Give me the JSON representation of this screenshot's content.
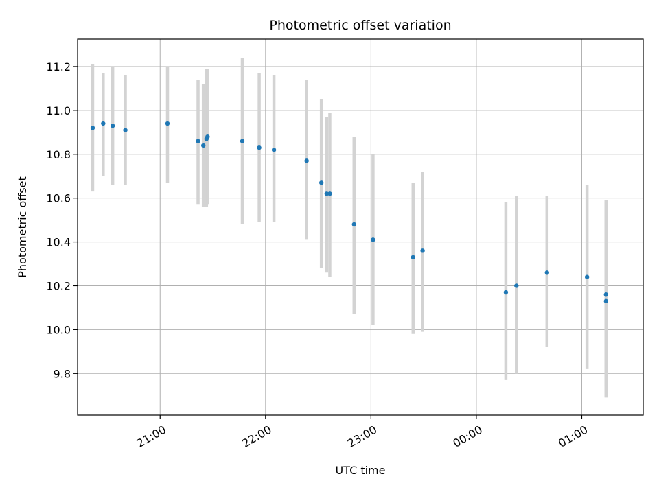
{
  "chart_data": {
    "type": "scatter",
    "title": "Photometric offset variation",
    "xlabel": "UTC time",
    "ylabel": "Photometric offset",
    "x_range_hours": [
      20.217,
      25.583
    ],
    "ylim": [
      9.61,
      11.325
    ],
    "x_ticks": [
      {
        "hour": 21,
        "label": "21:00"
      },
      {
        "hour": 22,
        "label": "22:00"
      },
      {
        "hour": 23,
        "label": "23:00"
      },
      {
        "hour": 24,
        "label": "00:00"
      },
      {
        "hour": 25,
        "label": "01:00"
      }
    ],
    "y_ticks": [
      {
        "value": 9.8,
        "label": "9.8"
      },
      {
        "value": 10.0,
        "label": "10.0"
      },
      {
        "value": 10.2,
        "label": "10.2"
      },
      {
        "value": 10.4,
        "label": "10.4"
      },
      {
        "value": 10.6,
        "label": "10.6"
      },
      {
        "value": 10.8,
        "label": "10.8"
      },
      {
        "value": 11.0,
        "label": "11.0"
      },
      {
        "value": 11.2,
        "label": "11.2"
      }
    ],
    "grid": true,
    "point_color": "#1f77b4",
    "errorbar_color": "#d3d3d3",
    "points": [
      {
        "hour": 20.36,
        "y": 10.92,
        "low": 10.63,
        "high": 11.21
      },
      {
        "hour": 20.46,
        "y": 10.94,
        "low": 10.7,
        "high": 11.17
      },
      {
        "hour": 20.55,
        "y": 10.93,
        "low": 10.66,
        "high": 11.2
      },
      {
        "hour": 20.67,
        "y": 10.91,
        "low": 10.66,
        "high": 11.16
      },
      {
        "hour": 21.07,
        "y": 10.94,
        "low": 10.67,
        "high": 11.2
      },
      {
        "hour": 21.36,
        "y": 10.86,
        "low": 10.57,
        "high": 11.14
      },
      {
        "hour": 21.41,
        "y": 10.84,
        "low": 10.56,
        "high": 11.12
      },
      {
        "hour": 21.44,
        "y": 10.87,
        "low": 10.56,
        "high": 11.19
      },
      {
        "hour": 21.45,
        "y": 10.88,
        "low": 10.57,
        "high": 11.19
      },
      {
        "hour": 21.78,
        "y": 10.86,
        "low": 10.48,
        "high": 11.24
      },
      {
        "hour": 21.94,
        "y": 10.83,
        "low": 10.49,
        "high": 11.17
      },
      {
        "hour": 22.08,
        "y": 10.82,
        "low": 10.49,
        "high": 11.16
      },
      {
        "hour": 22.39,
        "y": 10.77,
        "low": 10.41,
        "high": 11.14
      },
      {
        "hour": 22.53,
        "y": 10.67,
        "low": 10.28,
        "high": 11.05
      },
      {
        "hour": 22.58,
        "y": 10.62,
        "low": 10.26,
        "high": 10.97
      },
      {
        "hour": 22.61,
        "y": 10.62,
        "low": 10.24,
        "high": 10.99
      },
      {
        "hour": 22.84,
        "y": 10.48,
        "low": 10.07,
        "high": 10.88
      },
      {
        "hour": 23.02,
        "y": 10.41,
        "low": 10.02,
        "high": 10.8
      },
      {
        "hour": 23.4,
        "y": 10.33,
        "low": 9.98,
        "high": 10.67
      },
      {
        "hour": 23.49,
        "y": 10.36,
        "low": 9.99,
        "high": 10.72
      },
      {
        "hour": 24.28,
        "y": 10.17,
        "low": 9.77,
        "high": 10.58
      },
      {
        "hour": 24.38,
        "y": 10.2,
        "low": 9.8,
        "high": 10.61
      },
      {
        "hour": 24.67,
        "y": 10.26,
        "low": 9.92,
        "high": 10.61
      },
      {
        "hour": 25.05,
        "y": 10.24,
        "low": 9.82,
        "high": 10.66
      },
      {
        "hour": 25.23,
        "y": 10.16,
        "low": 9.74,
        "high": 10.59
      },
      {
        "hour": 25.23,
        "y": 10.13,
        "low": 9.69,
        "high": 10.58
      }
    ]
  }
}
